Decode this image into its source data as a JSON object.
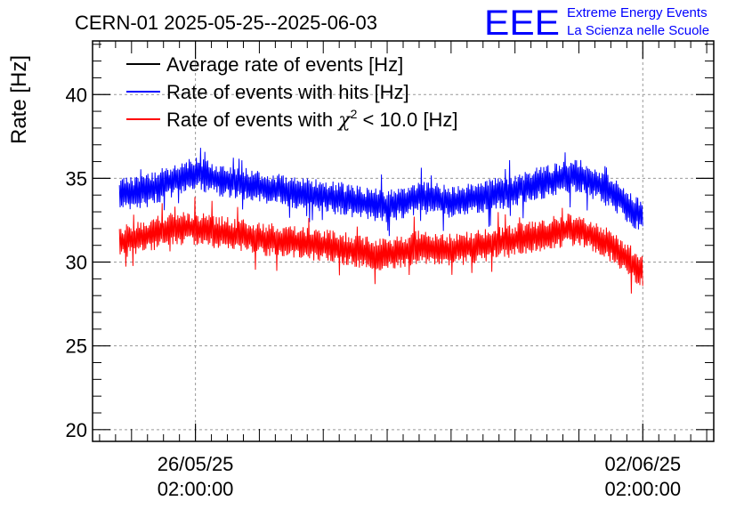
{
  "chart_data": {
    "type": "line",
    "title": "CERN-01 2025-05-25--2025-06-03",
    "xlabel": "",
    "ylabel": "Rate [Hz]",
    "ylim": [
      19.3,
      43.2
    ],
    "y_ticks": [
      20,
      25,
      30,
      35,
      40
    ],
    "x_range_days": [
      -1.61,
      8.11
    ],
    "x_ticks": [
      {
        "day": 0,
        "date": "26/05/25",
        "time": "02:00:00"
      },
      {
        "day": 7,
        "date": "02/06/25",
        "time": "02:00:00"
      }
    ],
    "grid": true,
    "legend_position": "top-left",
    "series": [
      {
        "name": "Average rate of events [Hz]",
        "color": "#000000",
        "visible_in_plot": false,
        "approx_profile": []
      },
      {
        "name": "Rate of events with hits [Hz]",
        "color": "#0000ff",
        "x_start_day": -1.19,
        "x_end_day": 7.0,
        "approx_profile": [
          [
            -1.19,
            34.0
          ],
          [
            -0.8,
            34.2
          ],
          [
            -0.4,
            34.8
          ],
          [
            0,
            35.3
          ],
          [
            0.5,
            34.8
          ],
          [
            1,
            34.5
          ],
          [
            1.5,
            34.2
          ],
          [
            2,
            34.0
          ],
          [
            2.5,
            33.6
          ],
          [
            3,
            33.3
          ],
          [
            3.5,
            33.9
          ],
          [
            4,
            33.6
          ],
          [
            4.5,
            33.9
          ],
          [
            5,
            34.3
          ],
          [
            5.5,
            34.8
          ],
          [
            6,
            35.2
          ],
          [
            6.5,
            34.2
          ],
          [
            7,
            32.6
          ]
        ],
        "noise_amplitude": 1.0
      },
      {
        "name": "Rate of events with χ² < 10.0 [Hz]",
        "color": "#ff0000",
        "x_start_day": -1.19,
        "x_end_day": 7.0,
        "approx_profile": [
          [
            -1.19,
            31.2
          ],
          [
            -0.8,
            31.5
          ],
          [
            -0.4,
            32.0
          ],
          [
            0,
            32.0
          ],
          [
            0.5,
            31.7
          ],
          [
            1,
            31.4
          ],
          [
            1.5,
            31.2
          ],
          [
            2,
            31.0
          ],
          [
            2.5,
            30.7
          ],
          [
            3,
            30.4
          ],
          [
            3.5,
            30.9
          ],
          [
            4,
            30.7
          ],
          [
            4.5,
            31.0
          ],
          [
            5,
            31.3
          ],
          [
            5.5,
            31.7
          ],
          [
            6,
            32.0
          ],
          [
            6.5,
            31.0
          ],
          [
            7,
            29.4
          ]
        ],
        "noise_amplitude": 1.0
      }
    ]
  },
  "legend": {
    "avg": "Average rate of events [Hz]",
    "hits": "Rate of events with hits [Hz]",
    "chi_prefix": "Rate of events with ",
    "chi_symbol": "χ",
    "chi_sup": "2",
    "chi_suffix": " < 10.0 [Hz]"
  },
  "logo": {
    "mark": "EEE",
    "line1": "Extreme Energy Events",
    "line2": "La Scienza nelle Scuole",
    "color": "#0000ff"
  }
}
